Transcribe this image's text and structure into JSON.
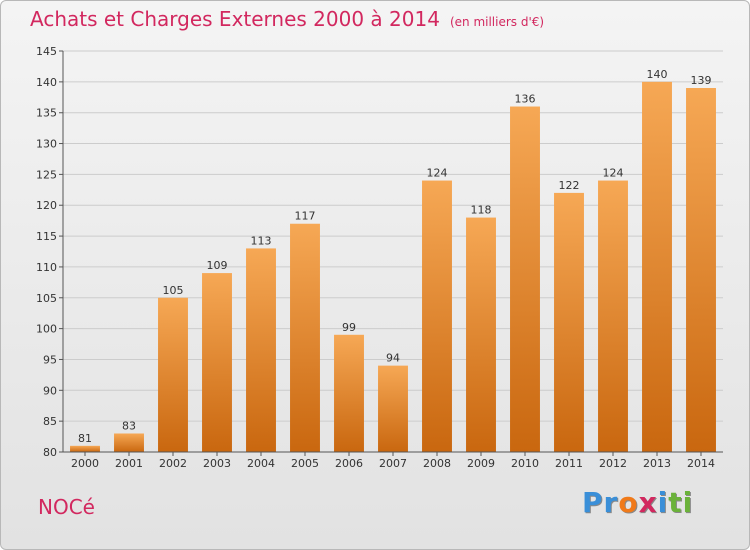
{
  "header": {
    "title": "Achats et Charges Externes 2000 à 2014",
    "subtitle": "(en milliers d'€)"
  },
  "footer": {
    "commune": "NOCé",
    "logo_letters": [
      "P",
      "r",
      "o",
      "x",
      "i",
      "t",
      "i"
    ],
    "logo_colors": [
      "#3a8fd8",
      "#3a8fd8",
      "#f07a1a",
      "#d2285f",
      "#3a8fd8",
      "#6bb23a",
      "#6bb23a"
    ]
  },
  "colors": {
    "bar_light": "#f6a855",
    "bar_dark": "#c9670f",
    "axis": "#555555",
    "grid": "#cccccc"
  },
  "chart_data": {
    "type": "bar",
    "title": "Achats et Charges Externes 2000 à 2014",
    "subtitle": "(en milliers d'€)",
    "categories": [
      "2000",
      "2001",
      "2002",
      "2003",
      "2004",
      "2005",
      "2006",
      "2007",
      "2008",
      "2009",
      "2010",
      "2011",
      "2012",
      "2013",
      "2014"
    ],
    "values": [
      81,
      83,
      105,
      109,
      113,
      117,
      99,
      94,
      124,
      118,
      136,
      122,
      124,
      140,
      139
    ],
    "data_labels": [
      "81",
      "83",
      "105",
      "109",
      "113",
      "117",
      "99",
      "94",
      "124",
      "118",
      "136",
      "122",
      "124",
      "140",
      "139"
    ],
    "ylim": [
      80,
      145
    ],
    "yticks": [
      80,
      85,
      90,
      95,
      100,
      105,
      110,
      115,
      120,
      125,
      130,
      135,
      140,
      145
    ],
    "ytick_labels": [
      "80",
      "85",
      "90",
      "95",
      "100",
      "105",
      "110",
      "115",
      "120",
      "125",
      "130",
      "135",
      "140",
      "145"
    ],
    "grid": true,
    "xlabel": "",
    "ylabel": ""
  }
}
